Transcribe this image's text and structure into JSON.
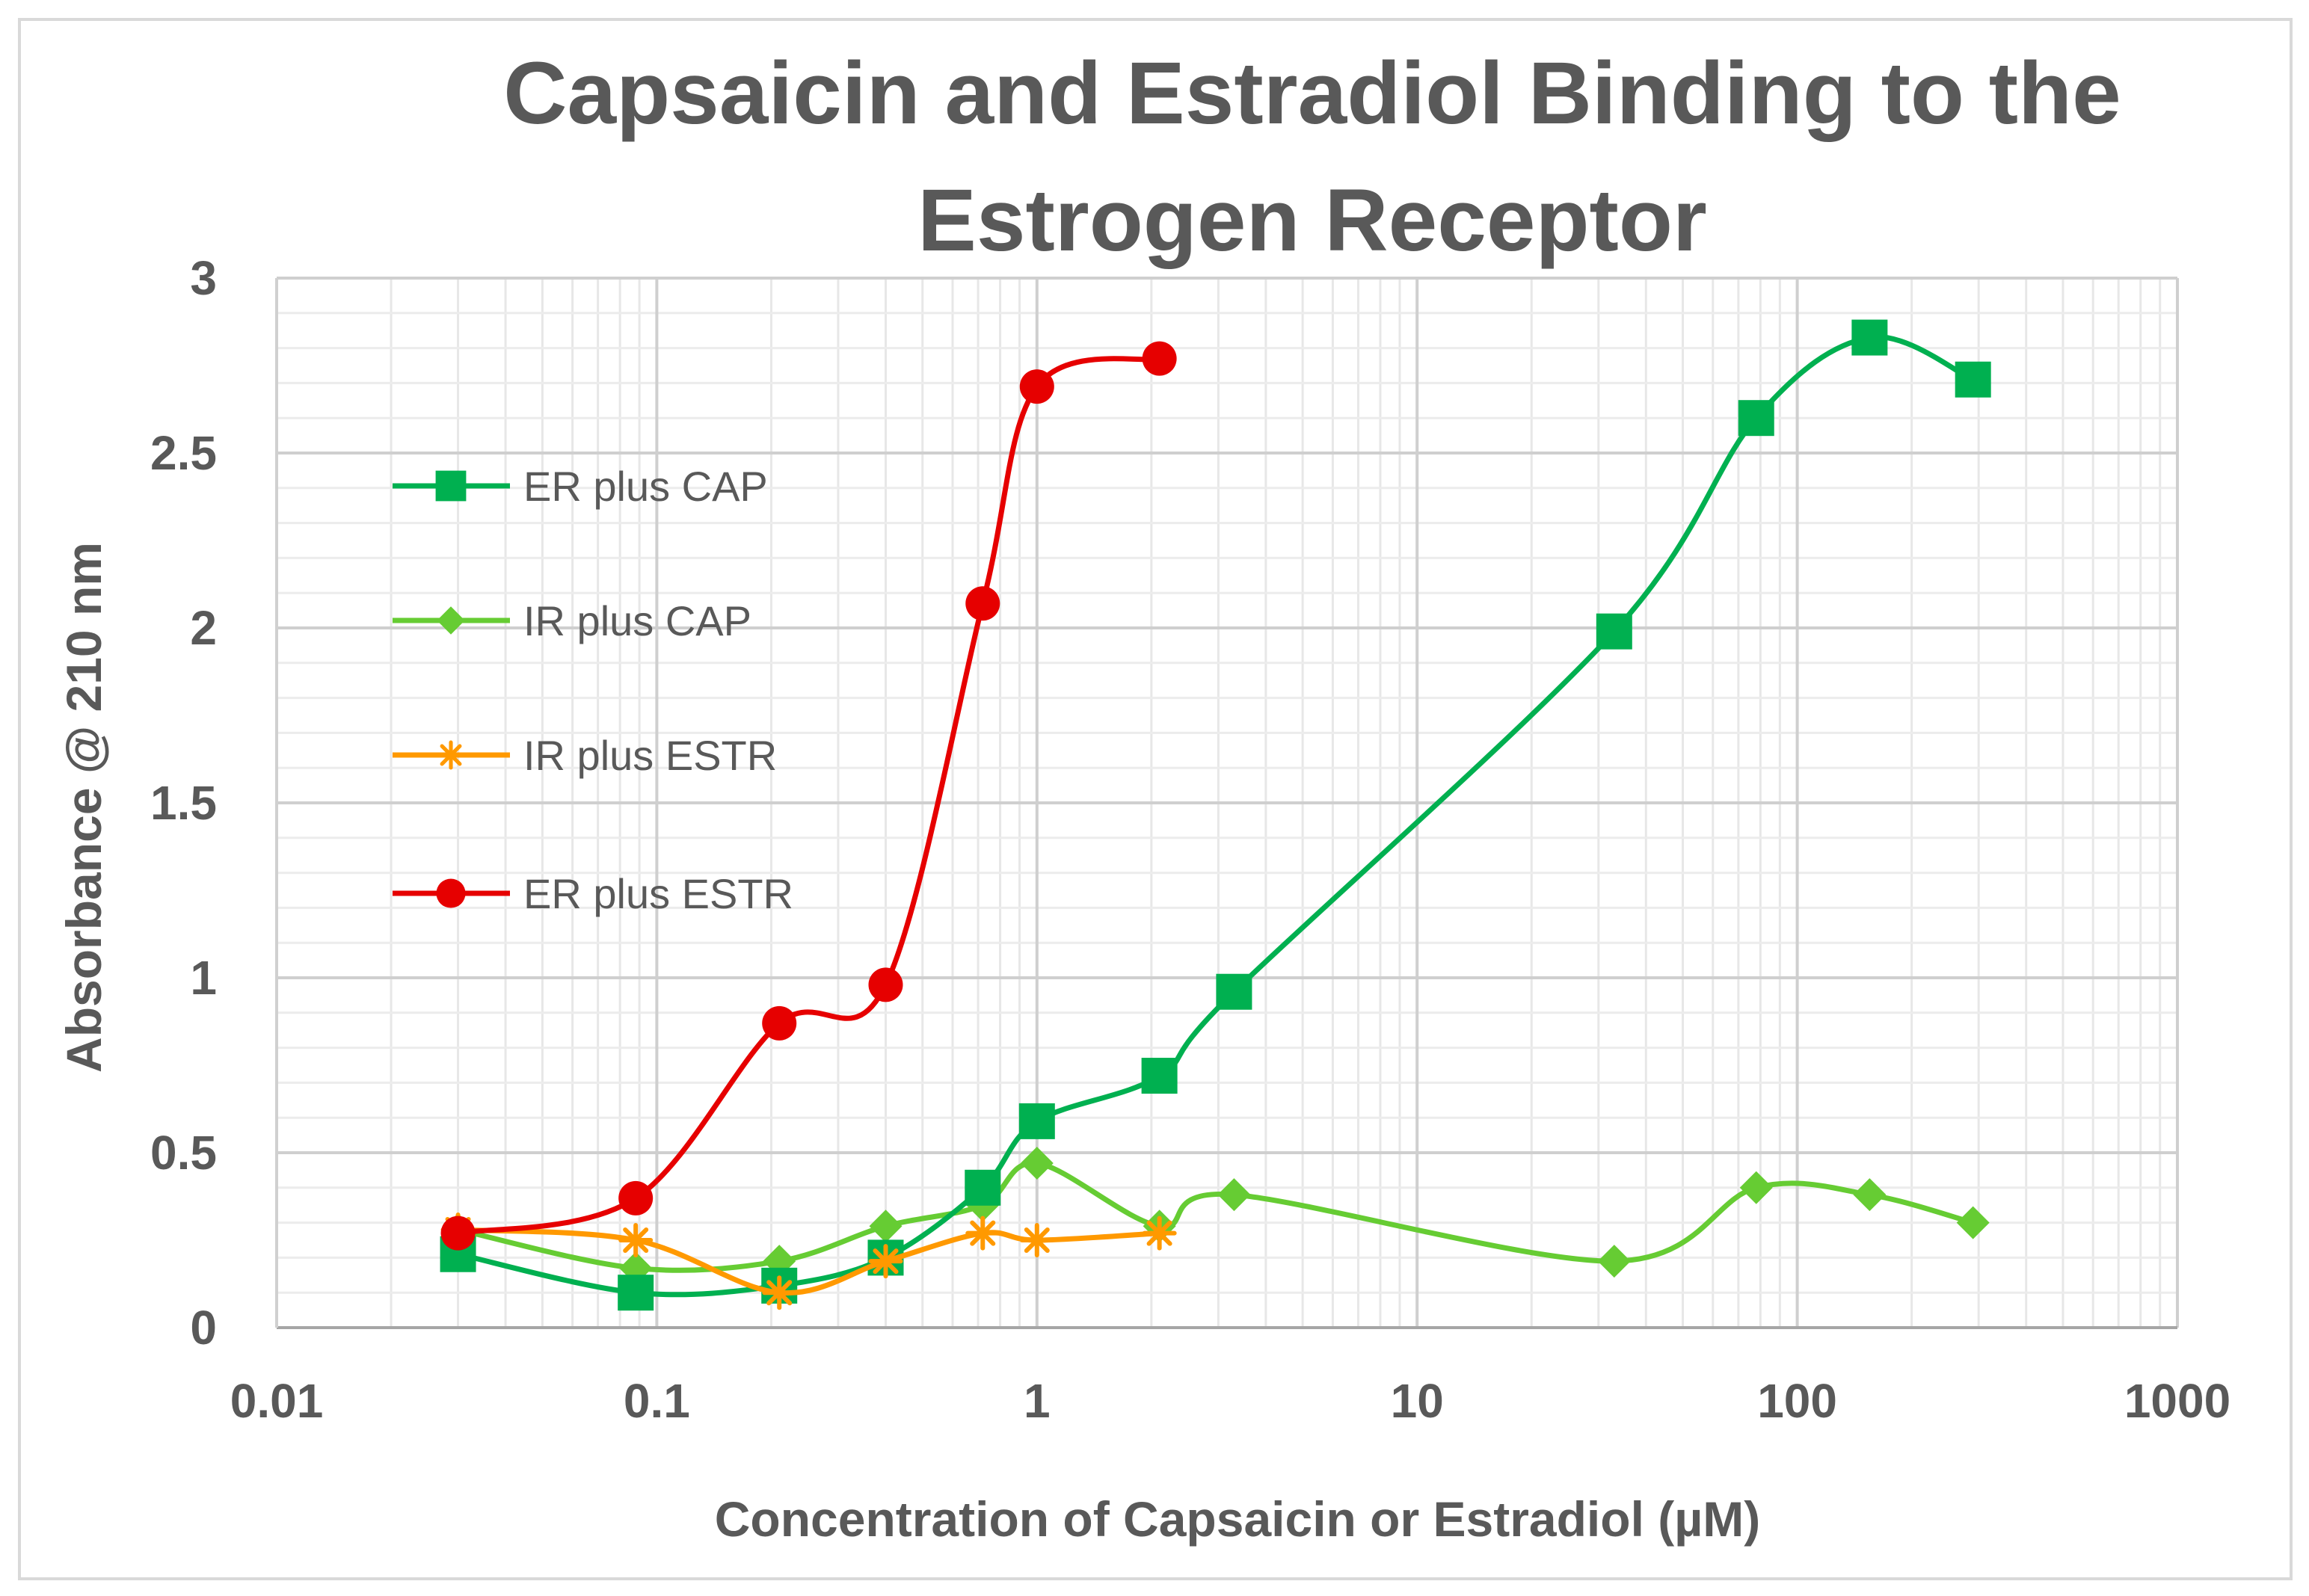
{
  "chart_data": {
    "type": "line",
    "title": "Capsaicin and Estradiol Binding to the Estrogen Receptor",
    "title_lines": [
      "Capsaicin and Estradiol Binding to the",
      "Estrogen Receptor"
    ],
    "xlabel": "Concentration of Capsaicin or Estradiol (µM)",
    "ylabel": "Absorbance  @ 210 nm",
    "xscale": "log",
    "xlim": [
      0.01,
      1000
    ],
    "ylim": [
      0,
      3
    ],
    "x_ticks": [
      0.01,
      0.1,
      1,
      10,
      100,
      1000
    ],
    "x_tick_labels": [
      "0.01",
      "0.1",
      "1",
      "10",
      "100",
      "1000"
    ],
    "y_ticks": [
      0,
      0.5,
      1,
      1.5,
      2,
      2.5,
      3
    ],
    "y_tick_labels": [
      "0",
      "0.5",
      "1",
      "1.5",
      "2",
      "2.5",
      "3"
    ],
    "grid": true,
    "legend_position": "left-inside",
    "series": [
      {
        "name": "ER plus CAP",
        "color": "#00b050",
        "marker": "square",
        "x": [
          0.03,
          0.088,
          0.21,
          0.4,
          0.72,
          1.0,
          2.1,
          3.3,
          33,
          78,
          155,
          290
        ],
        "y": [
          0.21,
          0.1,
          0.12,
          0.2,
          0.4,
          0.59,
          0.72,
          0.96,
          1.99,
          2.6,
          2.83,
          2.71
        ]
      },
      {
        "name": "IR plus CAP",
        "color": "#66cc33",
        "marker": "diamond",
        "x": [
          0.03,
          0.088,
          0.21,
          0.4,
          0.72,
          1.0,
          2.1,
          3.3,
          33,
          78,
          155,
          290
        ],
        "y": [
          0.28,
          0.17,
          0.19,
          0.29,
          0.35,
          0.47,
          0.29,
          0.38,
          0.19,
          0.4,
          0.38,
          0.3
        ]
      },
      {
        "name": "IR plus ESTR",
        "color": "#ff9900",
        "marker": "asterisk",
        "x": [
          0.03,
          0.088,
          0.21,
          0.4,
          0.72,
          1.0,
          2.1
        ],
        "y": [
          0.28,
          0.25,
          0.1,
          0.19,
          0.27,
          0.25,
          0.27
        ]
      },
      {
        "name": "ER plus ESTR",
        "color": "#e60000",
        "marker": "circle",
        "x": [
          0.03,
          0.088,
          0.21,
          0.4,
          0.72,
          1.0,
          2.1
        ],
        "y": [
          0.27,
          0.37,
          0.87,
          0.98,
          2.07,
          2.69,
          2.77
        ]
      }
    ]
  }
}
